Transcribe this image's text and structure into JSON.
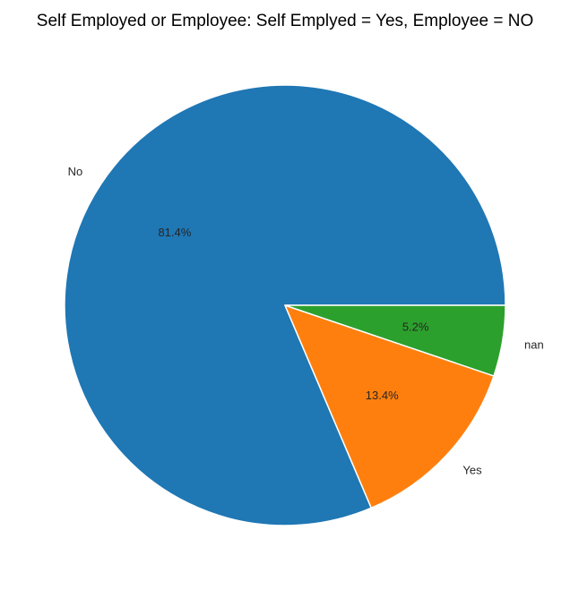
{
  "chart_data": {
    "type": "pie",
    "title": "Self Employed or Employee: Self Emplyed = Yes, Employee = NO",
    "slices": [
      {
        "label": "No",
        "value": 81.4,
        "pct_label": "81.4%",
        "color": "#1f77b4"
      },
      {
        "label": "Yes",
        "value": 13.4,
        "pct_label": "13.4%",
        "color": "#ff7f0e"
      },
      {
        "label": "nan",
        "value": 5.2,
        "pct_label": "5.2%",
        "color": "#2ca02c"
      }
    ],
    "start_angle_deg": 0,
    "direction": "counterclockwise",
    "slice_edge_color": "#ffffff",
    "legend": "none"
  }
}
